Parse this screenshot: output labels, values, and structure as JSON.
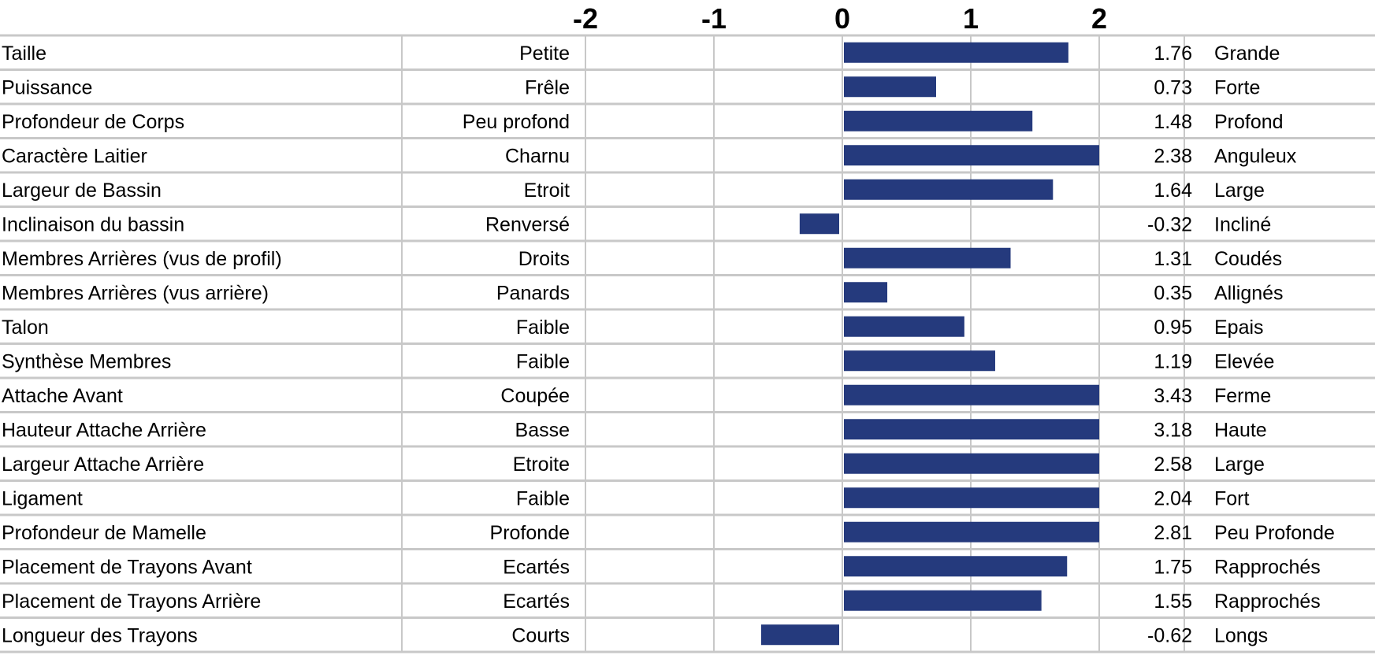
{
  "chart_data": {
    "type": "bar",
    "orientation": "horizontal",
    "title": "",
    "xlabel": "",
    "ylabel": "",
    "xlim": [
      -2,
      2
    ],
    "x_ticks": [
      "-2",
      "-1",
      "0",
      "1",
      "2"
    ],
    "bar_color": "#253a7d",
    "grid": true,
    "grid_color": "#c8c8c8",
    "bars_clipped_at_axis_limits": true,
    "rows": [
      {
        "trait": "Taille",
        "low": "Petite",
        "value": 1.76,
        "value_label": "1.76",
        "high": "Grande"
      },
      {
        "trait": "Puissance",
        "low": "Frêle",
        "value": 0.73,
        "value_label": "0.73",
        "high": "Forte"
      },
      {
        "trait": "Profondeur de Corps",
        "low": "Peu profond",
        "value": 1.48,
        "value_label": "1.48",
        "high": "Profond"
      },
      {
        "trait": "Caractère Laitier",
        "low": "Charnu",
        "value": 2.38,
        "value_label": "2.38",
        "high": "Anguleux"
      },
      {
        "trait": "Largeur de Bassin",
        "low": "Etroit",
        "value": 1.64,
        "value_label": "1.64",
        "high": "Large"
      },
      {
        "trait": "Inclinaison du bassin",
        "low": "Renversé",
        "value": -0.32,
        "value_label": "-0.32",
        "high": "Incliné"
      },
      {
        "trait": "Membres Arrières (vus de profil)",
        "low": "Droits",
        "value": 1.31,
        "value_label": "1.31",
        "high": "Coudés"
      },
      {
        "trait": "Membres Arrières (vus arrière)",
        "low": "Panards",
        "value": 0.35,
        "value_label": "0.35",
        "high": "Allignés"
      },
      {
        "trait": "Talon",
        "low": "Faible",
        "value": 0.95,
        "value_label": "0.95",
        "high": "Epais"
      },
      {
        "trait": "Synthèse Membres",
        "low": "Faible",
        "value": 1.19,
        "value_label": "1.19",
        "high": "Elevée"
      },
      {
        "trait": "Attache Avant",
        "low": "Coupée",
        "value": 3.43,
        "value_label": "3.43",
        "high": "Ferme"
      },
      {
        "trait": "Hauteur Attache Arrière",
        "low": "Basse",
        "value": 3.18,
        "value_label": "3.18",
        "high": "Haute"
      },
      {
        "trait": "Largeur Attache Arrière",
        "low": "Etroite",
        "value": 2.58,
        "value_label": "2.58",
        "high": "Large"
      },
      {
        "trait": "Ligament",
        "low": "Faible",
        "value": 2.04,
        "value_label": "2.04",
        "high": "Fort"
      },
      {
        "trait": "Profondeur de Mamelle",
        "low": "Profonde",
        "value": 2.81,
        "value_label": "2.81",
        "high": "Peu Profonde"
      },
      {
        "trait": "Placement de Trayons Avant",
        "low": "Ecartés",
        "value": 1.75,
        "value_label": "1.75",
        "high": "Rapprochés"
      },
      {
        "trait": "Placement de Trayons Arrière",
        "low": "Ecartés",
        "value": 1.55,
        "value_label": "1.55",
        "high": "Rapprochés"
      },
      {
        "trait": "Longueur des Trayons",
        "low": "Courts",
        "value": -0.62,
        "value_label": "-0.62",
        "high": "Longs"
      }
    ]
  }
}
